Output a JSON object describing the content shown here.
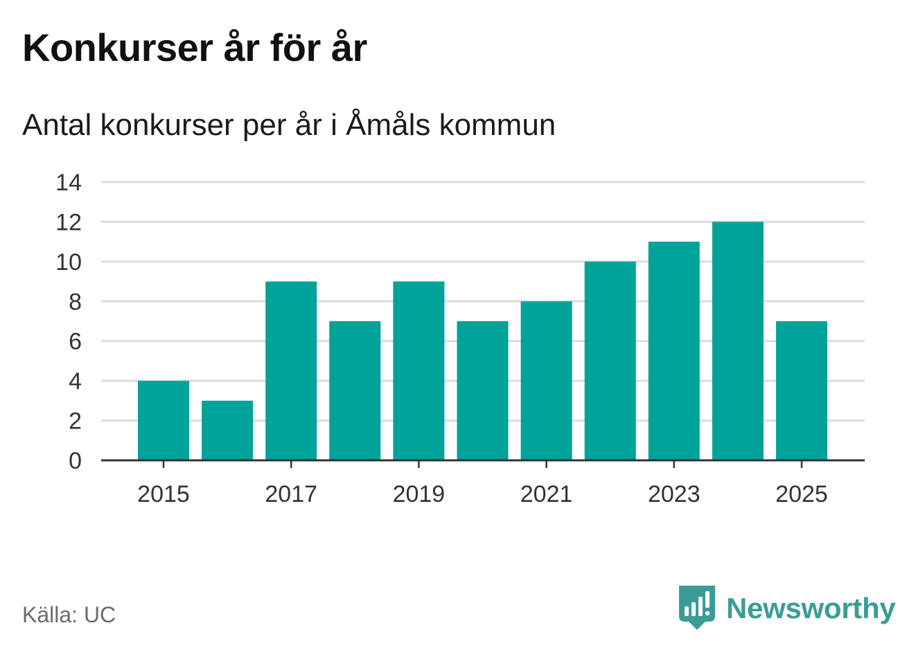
{
  "header": {
    "title": "Konkurser år för år",
    "subtitle": "Antal konkurser per år i Åmåls kommun"
  },
  "footer": {
    "source": "Källa: UC",
    "brand": "Newsworthy",
    "brand_icon": "newsworthy-logo-icon"
  },
  "colors": {
    "bar": "#00a39a",
    "grid": "#dcdcdc",
    "axis": "#333333",
    "brand": "#3b9c97"
  },
  "chart_data": {
    "type": "bar",
    "title": "Konkurser år för år",
    "subtitle": "Antal konkurser per år i Åmåls kommun",
    "xlabel": "",
    "ylabel": "",
    "categories": [
      2015,
      2016,
      2017,
      2018,
      2019,
      2020,
      2021,
      2022,
      2023,
      2024,
      2025
    ],
    "values": [
      4,
      3,
      9,
      7,
      9,
      7,
      8,
      10,
      11,
      12,
      7
    ],
    "x_tick_labels": [
      "2015",
      "2017",
      "2019",
      "2021",
      "2023",
      "2025"
    ],
    "y_ticks": [
      0,
      2,
      4,
      6,
      8,
      10,
      12,
      14
    ],
    "ylim": [
      0,
      14
    ],
    "grid": true,
    "legend": "none"
  }
}
